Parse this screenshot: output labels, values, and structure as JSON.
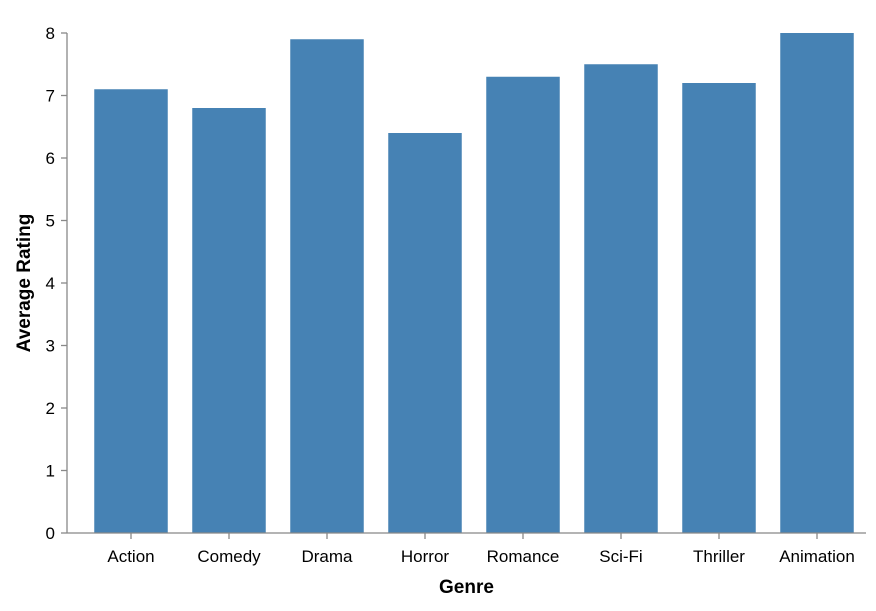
{
  "chart_data": {
    "type": "bar",
    "title": "",
    "xlabel": "Genre",
    "ylabel": "Average Rating",
    "categories": [
      "Action",
      "Comedy",
      "Drama",
      "Horror",
      "Romance",
      "Sci-Fi",
      "Thriller",
      "Animation"
    ],
    "values": [
      7.1,
      6.8,
      7.9,
      6.4,
      7.3,
      7.5,
      7.2,
      8.0
    ],
    "ylim": [
      0,
      8
    ],
    "yticks": [
      0,
      1,
      2,
      3,
      4,
      5,
      6,
      7,
      8
    ],
    "grid": false,
    "legend": "none",
    "bar_color": "#4682b4",
    "axis_color": "#888888"
  }
}
